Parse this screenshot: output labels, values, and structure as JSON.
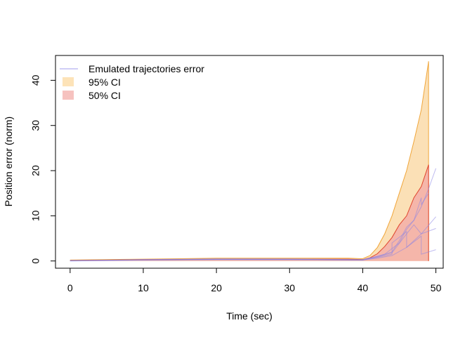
{
  "chart_data": {
    "type": "line",
    "xlabel": "Time (sec)",
    "ylabel": "Position error (norm)",
    "xlim": [
      -2,
      51
    ],
    "ylim": [
      -1.6,
      45.5
    ],
    "xticks": [
      0,
      10,
      20,
      30,
      40,
      50
    ],
    "yticks": [
      0,
      10,
      20,
      30,
      40
    ],
    "legend": {
      "placement": "top-left",
      "entries": [
        {
          "label": "Emulated trajectories error",
          "kind": "line",
          "color": "#b3b0f0"
        },
        {
          "label": "95% CI",
          "kind": "fill",
          "color": "#fde3b8"
        },
        {
          "label": "50% CI",
          "kind": "fill",
          "color": "#f6c2bf"
        }
      ]
    },
    "colors": {
      "ci95_fill": "#fbe0b6",
      "ci95_line": "#f0a63b",
      "ci50_fill": "#f5b6aa",
      "ci50_line": "#e0452c",
      "trajectory": "#8b83e3"
    },
    "ci95": {
      "x": [
        0,
        10,
        20,
        30,
        38,
        40,
        41,
        42,
        43,
        44,
        45,
        46,
        47,
        48,
        49
      ],
      "upper": [
        0.2,
        0.4,
        0.6,
        0.6,
        0.6,
        0.5,
        1.2,
        3.0,
        6.0,
        10.0,
        15.0,
        20.0,
        26.5,
        33.5,
        44.2
      ],
      "lower": [
        0,
        0,
        0,
        0,
        0,
        0,
        0,
        0,
        0,
        0,
        0,
        0,
        0,
        0,
        0
      ]
    },
    "ci50": {
      "x": [
        0,
        10,
        20,
        30,
        38,
        40,
        41,
        42,
        43,
        44,
        45,
        46,
        47,
        48,
        49
      ],
      "upper": [
        0.1,
        0.3,
        0.4,
        0.4,
        0.4,
        0.3,
        0.7,
        1.6,
        3.2,
        5.2,
        8.0,
        10.0,
        14.0,
        16.5,
        21.3
      ],
      "lower": [
        0,
        0,
        0,
        0,
        0,
        0,
        0,
        0,
        0,
        0,
        0,
        0,
        0,
        0,
        0
      ]
    },
    "series": [
      {
        "x": [
          0,
          10,
          20,
          30,
          40,
          42,
          44,
          45,
          46,
          47,
          48,
          49,
          50
        ],
        "y": [
          0.05,
          0.3,
          0.45,
          0.45,
          0.3,
          1.0,
          2.0,
          4.5,
          7.5,
          9.0,
          12.0,
          16.0,
          20.5
        ]
      },
      {
        "x": [
          0,
          10,
          20,
          30,
          40,
          42,
          44,
          44,
          46,
          46,
          48,
          48,
          50
        ],
        "y": [
          0.05,
          0.25,
          0.35,
          0.3,
          0.2,
          0.8,
          1.5,
          4.0,
          6.5,
          3.0,
          5.5,
          1.5,
          2.5
        ]
      },
      {
        "x": [
          0,
          10,
          20,
          30,
          40,
          42,
          44,
          46,
          48,
          50
        ],
        "y": [
          0.0,
          0.2,
          0.3,
          0.3,
          0.2,
          0.6,
          1.2,
          3.0,
          6.0,
          9.8
        ]
      },
      {
        "x": [
          0,
          10,
          20,
          30,
          40,
          42,
          44,
          46,
          47,
          48,
          50
        ],
        "y": [
          0.1,
          0.25,
          0.4,
          0.35,
          0.25,
          0.9,
          1.8,
          6.0,
          8.0,
          6.0,
          7.2
        ]
      },
      {
        "x": [
          0,
          10,
          20,
          30,
          40,
          43,
          45,
          46,
          47,
          48,
          48,
          49
        ],
        "y": [
          0.05,
          0.2,
          0.3,
          0.3,
          0.2,
          1.5,
          4.0,
          7.0,
          9.0,
          14.0,
          12.5,
          15.0
        ]
      }
    ]
  }
}
